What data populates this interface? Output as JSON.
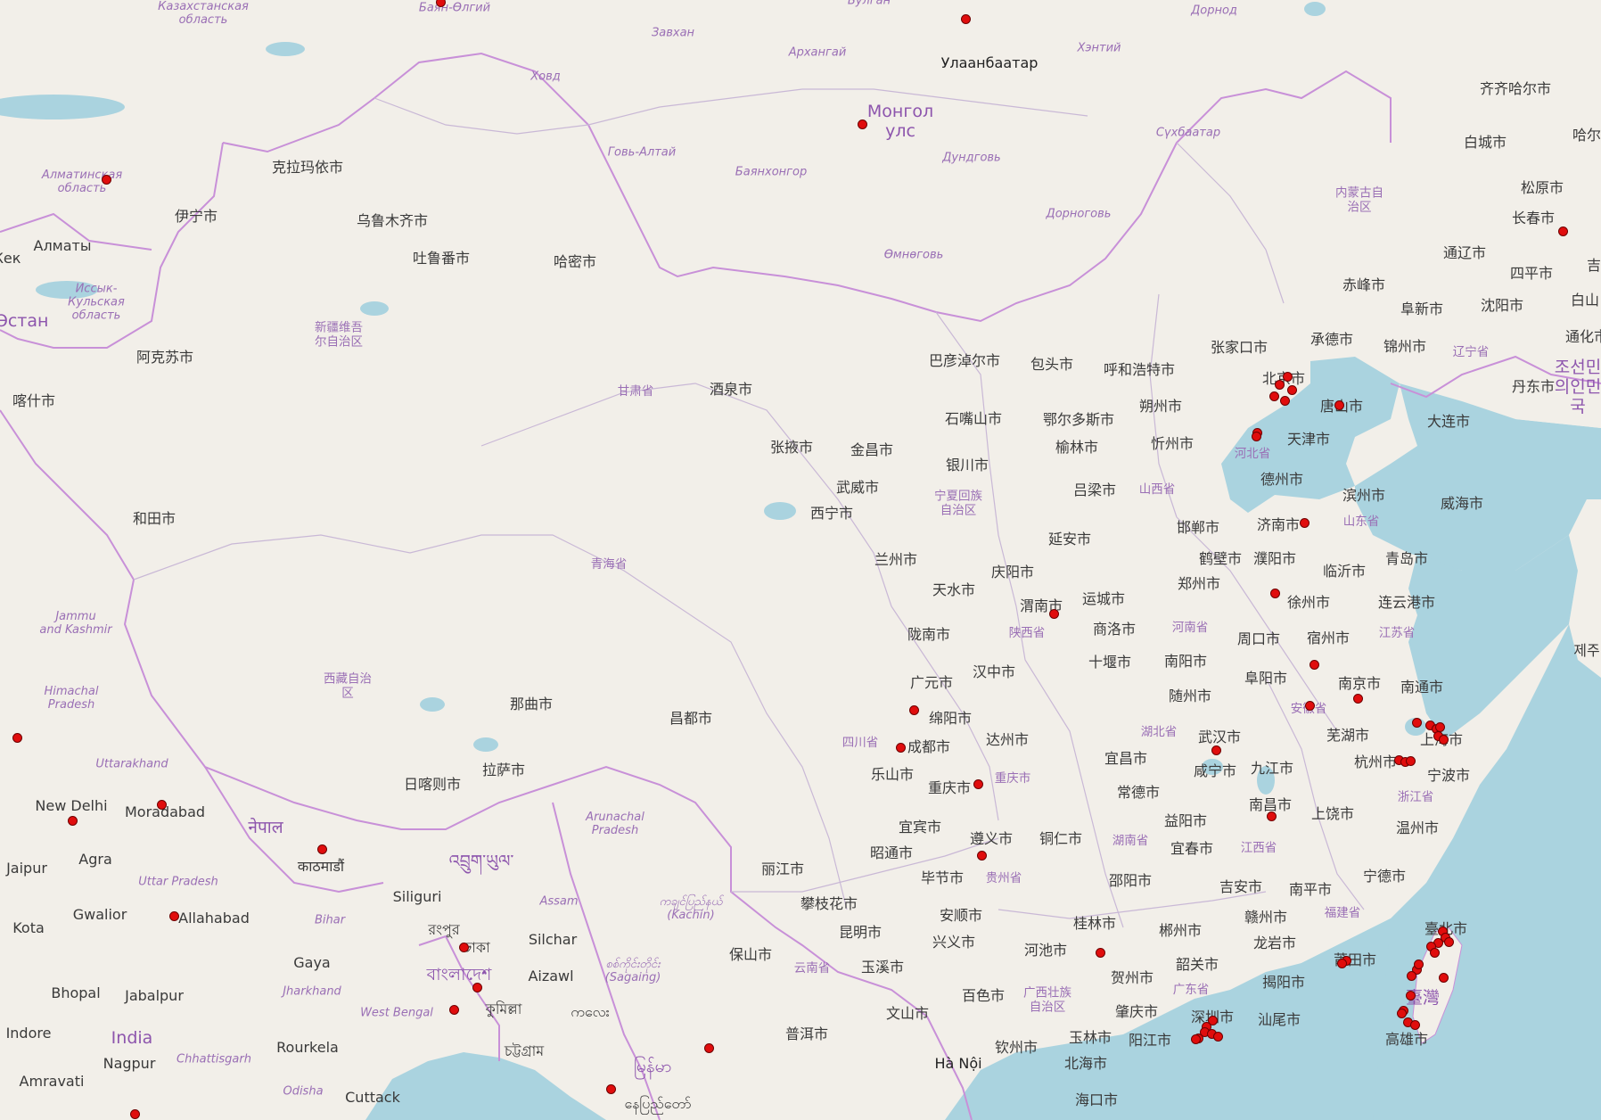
{
  "map": {
    "colors": {
      "land": "#f2efe9",
      "sea": "#aad3df",
      "lake": "#aad3df",
      "country_border": "#c890d8",
      "province_border": "#c9b8d6",
      "marker": "#e00d0d"
    },
    "labels": {
      "kazakh_oblast": "Казахстанская\nобласть",
      "bayan_olgii": "Баян-Өлгий",
      "bulgan": "Булган",
      "dornod": "Дорнод",
      "zavkhan": "Завхан",
      "arkhangai": "Архангай",
      "khentii": "Хэнтий",
      "khovd": "Ховд",
      "ulaanbaatar": "Улаанбаатар",
      "mongol_uls": "Монгол\nулс",
      "govi_altai": "Говь-Алтай",
      "bayankhongor": "Баянхонгор",
      "dundgovi": "Дундговь",
      "sukhbaatar": "Сүхбаатар",
      "dornogovi": "Дорноговь",
      "omnogovi": "Өмнөговь",
      "qiqihar": "齐齐哈尔市",
      "baicheng": "白城市",
      "harbin": "哈尔",
      "songyuan": "松原市",
      "changchun": "长春市",
      "tongliao": "通辽市",
      "siping": "四平市",
      "jilin_edge": "吉",
      "nei_menggu": "内蒙古自\n治区",
      "chifeng": "赤峰市",
      "fuxin": "阜新市",
      "shenyang": "沈阳市",
      "baishan": "白山",
      "almaty_oblast": "Алматинская\nобласть",
      "karamay": "克拉玛依市",
      "yining": "伊宁市",
      "almaty": "Алматы",
      "urumqi": "乌鲁木齐市",
      "turpan": "吐鲁番市",
      "hami": "哈密市",
      "issyk_kul": "Иссык-\nКульская\nобласть",
      "kek": "Кек",
      "stan": "Эстан",
      "xinjiang": "新疆维吾\n尔自治区",
      "aksu": "阿克苏市",
      "kashgar": "喀什市",
      "hotan": "和田市",
      "jammu_kashmir": "Jammu\nand Kashmir",
      "himachal": "Himachal\nPradesh",
      "uttarakhand": "Uttarakhand",
      "new_delhi": "New Delhi",
      "moradabad": "Moradabad",
      "jaipur": "Jaipur",
      "agra": "Agra",
      "uttar_pradesh": "Uttar Pradesh",
      "gwalior": "Gwalior",
      "allahabad": "Allahabad",
      "kota": "Kota",
      "bhopal": "Bhopal",
      "jabalpur": "Jabalpur",
      "indore": "Indore",
      "india": "India",
      "nagpur": "Nagpur",
      "chhattisgarh": "Chhattisgarh",
      "amravati": "Amravati",
      "rourkela": "Rourkela",
      "odisha": "Odisha",
      "cuttack": "Cuttack",
      "gaya": "Gaya",
      "jharkhand": "Jharkhand",
      "west_bengal": "West Bengal",
      "bihar": "Bihar",
      "nepal": "नेपाल",
      "kathmandu": "काठमाडौं",
      "siliguri": "Siliguri",
      "bhutan": "འབྲུག་ཡུལ་",
      "rangpur": "রংপুর",
      "dhaka": "ঢাকা",
      "bangladesh": "বাংলাদেশ",
      "comilla": "কুমিল্লা",
      "chittagong": "চট্টগ্রাম",
      "silchar": "Silchar",
      "aizawl": "Aizawl",
      "assam": "Assam",
      "arunachal": "Arunachal\nPradesh",
      "kachin": "ကချင်ပြည်နယ်\n(Kachin)",
      "sagaing": "စစ်ကိုင်းတိုင်း\n(Sagaing)",
      "myanmar": "မြန်မာ",
      "naypyidaw": "နေပြည်တော်",
      "mandalay_misc": "ကလေး",
      "xizang": "西藏自治\n区",
      "nagqu": "那曲市",
      "chamdo": "昌都市",
      "lhasa": "拉萨市",
      "shigatse": "日喀则市",
      "qinghai": "青海省",
      "gansu": "甘肃省",
      "jiuquan": "酒泉市",
      "zhangye": "张掖市",
      "jinchang": "金昌市",
      "wuwei": "武威市",
      "xining": "西宁市",
      "lanzhou": "兰州市",
      "tianshui": "天水市",
      "longnan": "陇南市",
      "guangyuan": "广元市",
      "bayannur": "巴彦淖尔市",
      "baotou": "包头市",
      "hohhot": "呼和浩特市",
      "zhangjiakou": "张家口市",
      "chengde": "承德市",
      "jinzhou": "锦州市",
      "liaoning": "辽宁省",
      "dandong": "丹东市",
      "korea": "조선민\n의인민\n국",
      "tonghua": "通化市",
      "beijing": "北京市",
      "tangshan": "唐山市",
      "tianjin": "天津市",
      "dalian": "大连市",
      "hebei": "河北省",
      "shizuishan": "石嘴山市",
      "ordos": "鄂尔多斯市",
      "shuozhou": "朔州市",
      "yulin_sx": "榆林市",
      "xinzhou": "忻州市",
      "yinchuan": "银川市",
      "ningxia": "宁夏回族\n自治区",
      "lvliang": "吕梁市",
      "shanxi": "山西省",
      "dezhou": "德州市",
      "binzhou": "滨州市",
      "weihai": "威海市",
      "yanan": "延安市",
      "handan": "邯郸市",
      "jinan": "济南市",
      "shandong": "山东省",
      "qingyang": "庆阳市",
      "hebi": "鹤壁市",
      "puyang": "濮阳市",
      "qingdao": "青岛市",
      "zhengzhou": "郑州市",
      "linyi": "临沂市",
      "weinan": "渭南市",
      "yuncheng": "运城市",
      "xuzhou": "徐州市",
      "lianyungang": "连云港市",
      "shaanxi": "陕西省",
      "shangluo": "商洛市",
      "henan": "河南省",
      "zhoukou": "周口市",
      "suzhou_ah": "宿州市",
      "jiangsu": "江苏省",
      "hanzhong": "汉中市",
      "shiyan": "十堰市",
      "nanyang": "南阳市",
      "fuyang": "阜阳市",
      "nanjing": "南京市",
      "nantong": "南通市",
      "mianyang": "绵阳市",
      "suizhou": "随州市",
      "anhui": "安徽省",
      "shanghai": "上海市",
      "sichuan": "四川省",
      "chengdu": "成都市",
      "dazhou": "达州市",
      "hubei": "湖北省",
      "wuhu": "芜湖市",
      "wuhan": "武汉市",
      "hangzhou": "杭州市",
      "ningbo": "宁波市",
      "leshan": "乐山市",
      "chongqing": "重庆市",
      "chongqing_prov": "重庆市",
      "yichang": "宜昌市",
      "xianning": "咸宁市",
      "jiujiang": "九江市",
      "changde": "常德市",
      "zhejiang": "浙江省",
      "nanchang": "南昌市",
      "shangrao": "上饶市",
      "yibin": "宜宾市",
      "zunyi": "遵义市",
      "tongren": "铜仁市",
      "yiyang": "益阳市",
      "hunan": "湖南省",
      "yichun": "宜春市",
      "jiangxi": "江西省",
      "wenzhou": "温州市",
      "zhaotong": "昭通市",
      "lijiang": "丽江市",
      "bijie": "毕节市",
      "guizhou": "贵州省",
      "shaoyang": "邵阳市",
      "jian": "吉安市",
      "nanping": "南平市",
      "ningde": "宁德市",
      "panzhihua": "攀枝花市",
      "anshun": "安顺市",
      "fujian": "福建省",
      "guilin": "桂林市",
      "ganzhou": "赣州市",
      "kunming": "昆明市",
      "xingyi": "兴义市",
      "longyan": "龙岩市",
      "baoshan": "保山市",
      "hechi": "河池市",
      "chenzhou": "郴州市",
      "taibei": "臺北市",
      "yunnan": "云南省",
      "yuxi": "玉溪市",
      "hezhou": "贺州市",
      "shaoguan": "韶关市",
      "putian": "莆田市",
      "jieyang": "揭阳市",
      "baise": "百色市",
      "guangxi": "广西壮族\n自治区",
      "guangdong": "广东省",
      "taiwan": "臺灣",
      "wenshan": "文山市",
      "zhaoqing": "肇庆市",
      "shenzhen": "深圳市",
      "shanwei": "汕尾市",
      "puer": "普洱市",
      "qinzhou": "钦州市",
      "yulin_gx": "玉林市",
      "yangjiang": "阳江市",
      "kaohsiung": "高雄市",
      "hanoi": "Hà Nội",
      "beihai": "北海市",
      "haikou": "海口市",
      "jeju": "제주"
    }
  }
}
